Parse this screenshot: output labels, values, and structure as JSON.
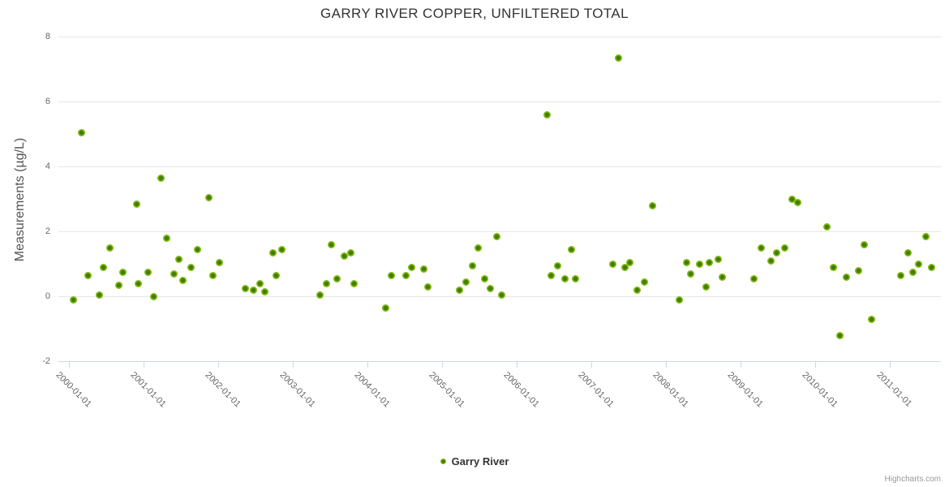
{
  "chart": {
    "title": "GARRY RIVER COPPER, UNFILTERED TOTAL",
    "y_axis_title": "Measurements (µg/L)",
    "credit": "Highcharts.com"
  },
  "legend": {
    "items": [
      {
        "label": "Garry River",
        "color": "#84b70f"
      }
    ]
  },
  "colors": {
    "point_outer": "#84b70f",
    "point_inner": "#3e7d04",
    "grid": "#e6e6e6",
    "axis_line": "#ccd6eb",
    "title_text": "#333333",
    "label_text": "#666666"
  },
  "chart_data": {
    "type": "scatter",
    "title": "GARRY RIVER COPPER, UNFILTERED TOTAL",
    "xlabel": "",
    "ylabel": "Measurements (µg/L)",
    "ylim": [
      -2,
      8
    ],
    "y_ticks": [
      8,
      6,
      4,
      2,
      0,
      -2
    ],
    "x_type": "datetime",
    "x_ticks": [
      "2000-01-01",
      "2001-01-01",
      "2002-01-01",
      "2003-01-01",
      "2004-01-01",
      "2005-01-01",
      "2006-01-01",
      "2007-01-01",
      "2008-01-01",
      "2009-01-01",
      "2010-01-01",
      "2011-01-01"
    ],
    "grid": "horizontal",
    "legend_position": "bottom",
    "series": [
      {
        "name": "Garry River",
        "points": [
          [
            "2000-01-24",
            -0.1
          ],
          [
            "2000-03-01",
            5.05
          ],
          [
            "2000-04-04",
            0.65
          ],
          [
            "2000-05-30",
            0.05
          ],
          [
            "2000-06-16",
            0.9
          ],
          [
            "2000-07-21",
            1.5
          ],
          [
            "2000-09-01",
            0.35
          ],
          [
            "2000-09-22",
            0.75
          ],
          [
            "2000-11-28",
            2.85
          ],
          [
            "2000-12-05",
            0.4
          ],
          [
            "2001-01-22",
            0.75
          ],
          [
            "2001-02-17",
            0.0
          ],
          [
            "2001-03-27",
            3.65
          ],
          [
            "2001-04-25",
            1.8
          ],
          [
            "2001-05-30",
            0.7
          ],
          [
            "2001-06-21",
            1.15
          ],
          [
            "2001-07-13",
            0.5
          ],
          [
            "2001-08-22",
            0.9
          ],
          [
            "2001-09-22",
            1.45
          ],
          [
            "2001-11-17",
            3.05
          ],
          [
            "2001-12-07",
            0.65
          ],
          [
            "2002-01-07",
            1.05
          ],
          [
            "2002-05-15",
            0.25
          ],
          [
            "2002-06-21",
            0.2
          ],
          [
            "2002-07-24",
            0.4
          ],
          [
            "2002-08-15",
            0.15
          ],
          [
            "2002-09-24",
            1.35
          ],
          [
            "2002-10-12",
            0.65
          ],
          [
            "2002-11-10",
            1.45
          ],
          [
            "2003-05-15",
            0.05
          ],
          [
            "2003-06-13",
            0.4
          ],
          [
            "2003-07-08",
            1.6
          ],
          [
            "2003-08-06",
            0.55
          ],
          [
            "2003-09-08",
            1.25
          ],
          [
            "2003-10-11",
            1.35
          ],
          [
            "2003-10-26",
            0.4
          ],
          [
            "2004-04-01",
            -0.35
          ],
          [
            "2004-04-26",
            0.65
          ],
          [
            "2004-07-08",
            0.65
          ],
          [
            "2004-08-06",
            0.9
          ],
          [
            "2004-10-01",
            0.85
          ],
          [
            "2004-10-23",
            0.3
          ],
          [
            "2005-03-28",
            0.2
          ],
          [
            "2005-04-26",
            0.45
          ],
          [
            "2005-05-29",
            0.95
          ],
          [
            "2005-06-24",
            1.5
          ],
          [
            "2005-07-27",
            0.55
          ],
          [
            "2005-08-25",
            0.25
          ],
          [
            "2005-09-27",
            1.85
          ],
          [
            "2005-10-19",
            0.05
          ],
          [
            "2006-05-29",
            5.6
          ],
          [
            "2006-06-20",
            0.65
          ],
          [
            "2006-07-19",
            0.95
          ],
          [
            "2006-08-25",
            0.55
          ],
          [
            "2006-09-24",
            1.45
          ],
          [
            "2006-10-16",
            0.55
          ],
          [
            "2007-04-16",
            1.0
          ],
          [
            "2007-05-15",
            7.35
          ],
          [
            "2007-06-13",
            0.9
          ],
          [
            "2007-07-08",
            1.05
          ],
          [
            "2007-08-14",
            0.2
          ],
          [
            "2007-09-16",
            0.45
          ],
          [
            "2007-10-26",
            2.8
          ],
          [
            "2008-03-06",
            -0.1
          ],
          [
            "2008-04-11",
            1.05
          ],
          [
            "2008-05-03",
            0.7
          ],
          [
            "2008-06-12",
            1.0
          ],
          [
            "2008-07-15",
            0.3
          ],
          [
            "2008-08-02",
            1.05
          ],
          [
            "2008-09-12",
            1.15
          ],
          [
            "2008-10-04",
            0.6
          ],
          [
            "2009-03-06",
            0.55
          ],
          [
            "2009-04-12",
            1.5
          ],
          [
            "2009-05-29",
            1.1
          ],
          [
            "2009-06-27",
            1.35
          ],
          [
            "2009-08-06",
            1.5
          ],
          [
            "2009-09-08",
            3.0
          ],
          [
            "2009-10-07",
            2.9
          ],
          [
            "2010-02-27",
            2.15
          ],
          [
            "2010-03-31",
            0.9
          ],
          [
            "2010-05-03",
            -1.2
          ],
          [
            "2010-06-01",
            0.6
          ],
          [
            "2010-07-30",
            0.8
          ],
          [
            "2010-08-28",
            1.6
          ],
          [
            "2010-10-03",
            -0.7
          ],
          [
            "2011-02-23",
            0.65
          ],
          [
            "2011-04-01",
            1.35
          ],
          [
            "2011-04-23",
            0.75
          ],
          [
            "2011-05-22",
            1.0
          ],
          [
            "2011-06-27",
            1.85
          ],
          [
            "2011-07-26",
            0.9
          ]
        ]
      }
    ]
  }
}
